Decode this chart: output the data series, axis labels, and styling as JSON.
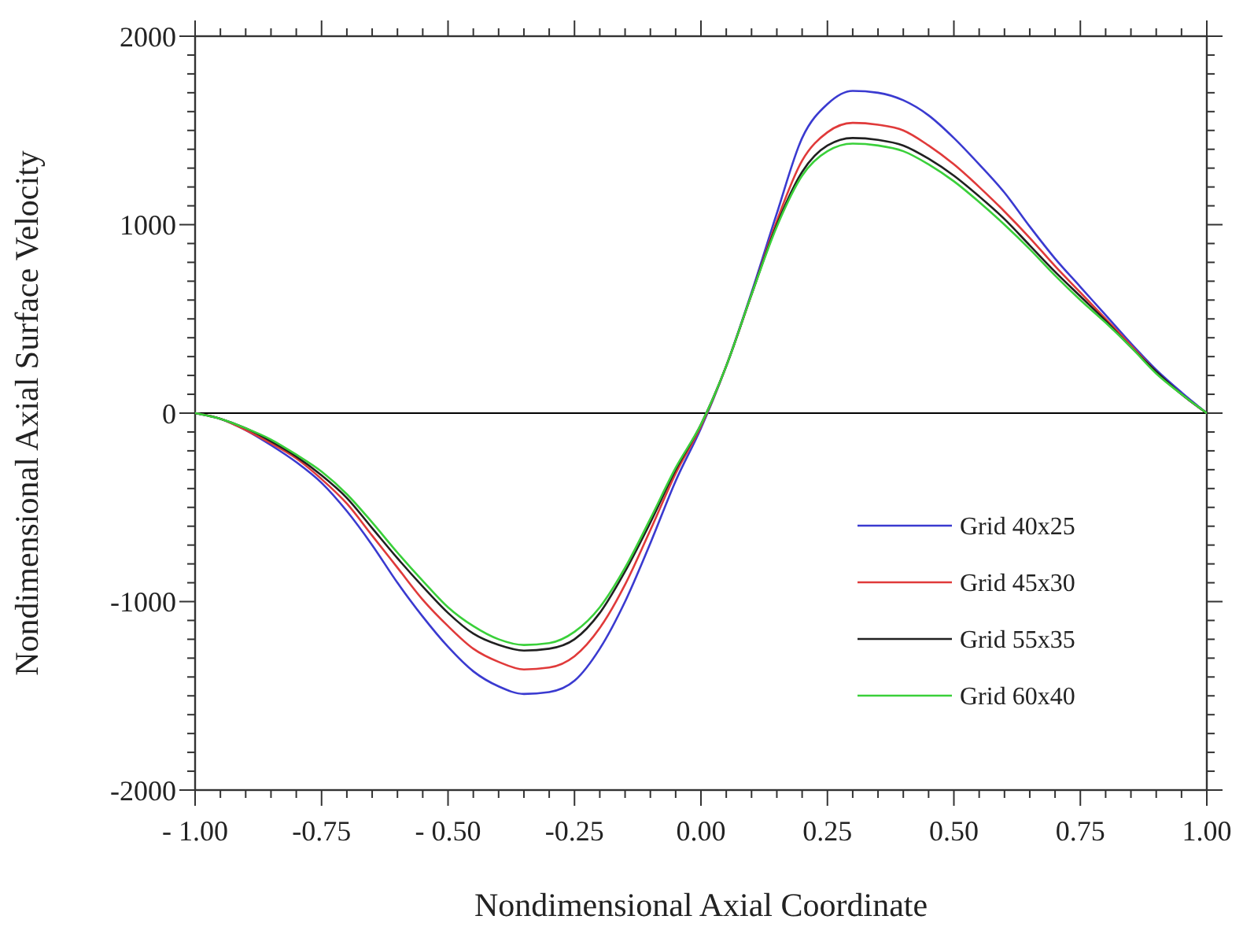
{
  "chart_data": {
    "type": "line",
    "xlabel": "Nondimensional Axial Coordinate",
    "ylabel": "Nondimensional Axial Surface Velocity",
    "x": [
      -1,
      -0.95,
      -0.9,
      -0.85,
      -0.8,
      -0.75,
      -0.7,
      -0.65,
      -0.6,
      -0.55,
      -0.5,
      -0.45,
      -0.4,
      -0.35,
      -0.3,
      -0.25,
      -0.2,
      -0.15,
      -0.1,
      -0.05,
      0,
      0.05,
      0.1,
      0.15,
      0.2,
      0.25,
      0.3,
      0.35,
      0.4,
      0.45,
      0.5,
      0.55,
      0.6,
      0.65,
      0.7,
      0.75,
      0.8,
      0.85,
      0.9,
      0.95,
      1
    ],
    "series": [
      {
        "name": "Grid 40x25",
        "color": "#3a3ad0",
        "values": [
          0,
          -30,
          -90,
          -170,
          -260,
          -370,
          -520,
          -700,
          -900,
          -1080,
          -1240,
          -1370,
          -1450,
          -1490,
          -1480,
          -1420,
          -1250,
          -1000,
          -690,
          -360,
          -80,
          250,
          640,
          1060,
          1460,
          1640,
          1710,
          1700,
          1660,
          1580,
          1460,
          1320,
          1170,
          990,
          820,
          670,
          520,
          370,
          230,
          110,
          0
        ]
      },
      {
        "name": "Grid 45x30",
        "color": "#e03a3a",
        "values": [
          0,
          -30,
          -90,
          -160,
          -240,
          -350,
          -480,
          -650,
          -820,
          -990,
          -1130,
          -1250,
          -1320,
          -1360,
          -1350,
          -1290,
          -1140,
          -910,
          -620,
          -320,
          -70,
          250,
          630,
          1020,
          1340,
          1490,
          1540,
          1530,
          1500,
          1420,
          1320,
          1200,
          1070,
          930,
          780,
          640,
          500,
          360,
          220,
          100,
          0
        ]
      },
      {
        "name": "Grid 55x35",
        "color": "#202020",
        "values": [
          0,
          -30,
          -80,
          -150,
          -230,
          -330,
          -450,
          -610,
          -770,
          -920,
          -1060,
          -1170,
          -1230,
          -1260,
          -1250,
          -1200,
          -1060,
          -840,
          -580,
          -300,
          -60,
          250,
          630,
          1000,
          1280,
          1420,
          1460,
          1450,
          1420,
          1350,
          1260,
          1150,
          1030,
          890,
          750,
          620,
          490,
          350,
          220,
          100,
          0
        ]
      },
      {
        "name": "Grid 60x40",
        "color": "#3ad03a",
        "values": [
          0,
          -30,
          -80,
          -140,
          -220,
          -310,
          -430,
          -580,
          -740,
          -890,
          -1030,
          -1130,
          -1200,
          -1230,
          -1220,
          -1160,
          -1030,
          -820,
          -560,
          -290,
          -60,
          250,
          630,
          990,
          1260,
          1390,
          1430,
          1420,
          1390,
          1320,
          1230,
          1120,
          1000,
          870,
          730,
          600,
          480,
          350,
          210,
          100,
          0
        ]
      }
    ],
    "xlim": [
      -1,
      1
    ],
    "xticks": [
      {
        "value": -1,
        "label": "- 1.00"
      },
      {
        "value": -0.75,
        "label": "-0.75"
      },
      {
        "value": -0.5,
        "label": "- 0.50"
      },
      {
        "value": -0.25,
        "label": "-0.25"
      },
      {
        "value": 0,
        "label": "0.00"
      },
      {
        "value": 0.25,
        "label": "0.25"
      },
      {
        "value": 0.5,
        "label": "0.50"
      },
      {
        "value": 0.75,
        "label": "0.75"
      },
      {
        "value": 1,
        "label": "1.00"
      }
    ],
    "ylim": [
      -2000,
      2000
    ],
    "yticks": [
      -2000,
      -1000,
      0,
      1000,
      2000
    ],
    "ref_lines": [
      {
        "axis": "y",
        "value": 0,
        "color": "#000000"
      }
    ],
    "legend": "right",
    "grid": false,
    "marker": "none",
    "line_style": "solid"
  }
}
